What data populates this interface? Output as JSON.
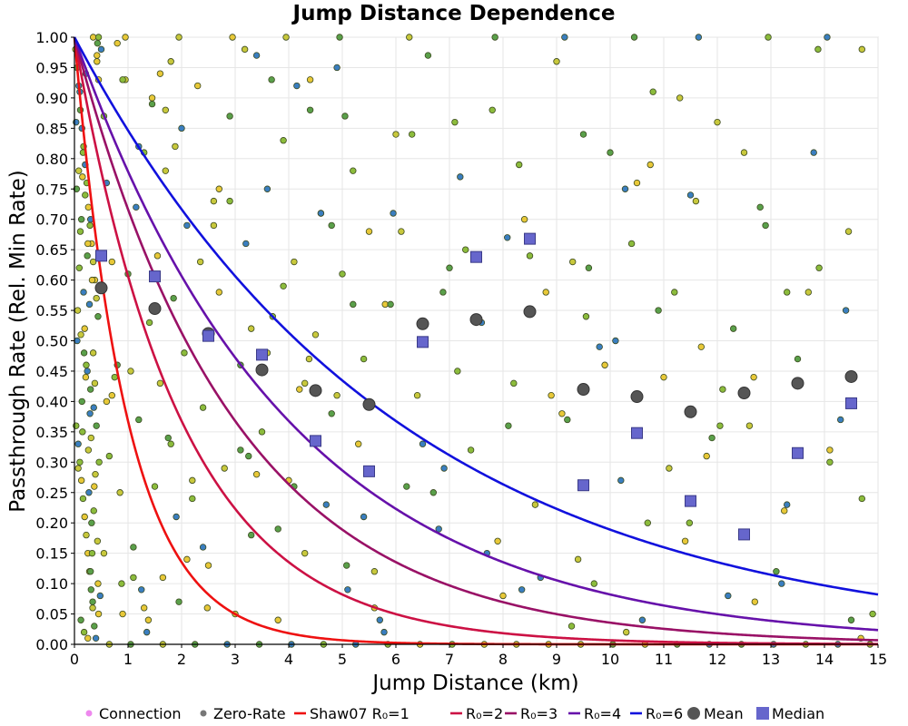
{
  "chart_data": {
    "type": "scatter",
    "title": "Jump Distance Dependence",
    "xlabel": "Jump Distance (km)",
    "ylabel": "Passthrough Rate (Rel. Min Rate)",
    "xlim": [
      0,
      15
    ],
    "ylim": [
      0,
      1
    ],
    "x_ticks": [
      "0",
      "1",
      "2",
      "3",
      "4",
      "5",
      "6",
      "7",
      "8",
      "9",
      "10",
      "11",
      "12",
      "13",
      "14",
      "15"
    ],
    "y_ticks": [
      "0.00",
      "0.05",
      "0.10",
      "0.15",
      "0.20",
      "0.25",
      "0.30",
      "0.35",
      "0.40",
      "0.45",
      "0.50",
      "0.55",
      "0.60",
      "0.65",
      "0.70",
      "0.75",
      "0.80",
      "0.85",
      "0.90",
      "0.95",
      "1.00"
    ],
    "grid": true,
    "legend_position": "bottom",
    "legend": [
      {
        "label": "Connection",
        "kind": "dot",
        "color": "#ee88ee"
      },
      {
        "label": "Zero-Rate",
        "kind": "dot",
        "color": "#777777"
      },
      {
        "label": "Shaw07 R₀=1",
        "kind": "line",
        "color": "#ee1111"
      },
      {
        "label": "R₀=2",
        "kind": "line",
        "color": "#cc1144"
      },
      {
        "label": "R₀=3",
        "kind": "line",
        "color": "#991166"
      },
      {
        "label": "R₀=4",
        "kind": "line",
        "color": "#6611aa"
      },
      {
        "label": "R₀=6",
        "kind": "line",
        "color": "#1111dd"
      },
      {
        "label": "Mean",
        "kind": "circle",
        "color": "#555555"
      },
      {
        "label": "Median",
        "kind": "square",
        "color": "#6666cc"
      }
    ],
    "curves": [
      {
        "name": "Shaw07 R₀=1",
        "model": "exp(-x/R0)",
        "R0": 1,
        "color": "#ee1111"
      },
      {
        "name": "R₀=2",
        "model": "exp(-x/R0)",
        "R0": 2,
        "color": "#cc1144"
      },
      {
        "name": "R₀=3",
        "model": "exp(-x/R0)",
        "R0": 3,
        "color": "#991166"
      },
      {
        "name": "R₀=4",
        "model": "exp(-x/R0)",
        "R0": 4,
        "color": "#6611aa"
      },
      {
        "name": "R₀=6",
        "model": "exp(-x/R0)",
        "R0": 6,
        "color": "#1111dd"
      }
    ],
    "mean": {
      "name": "Mean",
      "color": "#555555",
      "x": [
        0.5,
        1.5,
        2.5,
        3.5,
        4.5,
        5.5,
        6.5,
        7.5,
        8.5,
        9.5,
        10.5,
        11.5,
        12.5,
        13.5,
        14.5
      ],
      "y": [
        0.587,
        0.553,
        0.512,
        0.452,
        0.418,
        0.395,
        0.528,
        0.535,
        0.548,
        0.42,
        0.408,
        0.383,
        0.414,
        0.43,
        0.441
      ]
    },
    "median": {
      "name": "Median",
      "color": "#6666cc",
      "x": [
        0.5,
        1.5,
        2.5,
        3.5,
        4.5,
        5.5,
        6.5,
        7.5,
        8.5,
        9.5,
        10.5,
        11.5,
        12.5,
        13.5,
        14.5
      ],
      "y": [
        0.64,
        0.606,
        0.508,
        0.477,
        0.335,
        0.285,
        0.498,
        0.638,
        0.668,
        0.262,
        0.348,
        0.236,
        0.181,
        0.315,
        0.397
      ]
    },
    "points": {
      "colors": [
        "#c8c83c",
        "#8cbc3c",
        "#5aa04a",
        "#e8c838",
        "#3a7ec0"
      ],
      "x": [
        0.02,
        0.05,
        0.08,
        0.11,
        0.14,
        0.17,
        0.2,
        0.23,
        0.26,
        0.29,
        0.32,
        0.35,
        0.38,
        0.41,
        0.44,
        0.12,
        0.18,
        0.24,
        0.3,
        0.36,
        0.03,
        0.07,
        0.1,
        0.13,
        0.16,
        0.19,
        0.22,
        0.25,
        0.28,
        0.31,
        0.34,
        0.37,
        0.4,
        0.43,
        0.05,
        0.15,
        0.27,
        0.33,
        0.45,
        0.09,
        0.21,
        0.39,
        0.42,
        0.06,
        0.14,
        0.26,
        0.32,
        0.48,
        0.04,
        0.17,
        0.22,
        0.29,
        0.36,
        0.44,
        0.11,
        0.19,
        0.31,
        0.37,
        0.08,
        0.24,
        0.35,
        0.41,
        0.03,
        0.13,
        0.28,
        0.46,
        0.1,
        0.2,
        0.33,
        0.16,
        0.25,
        0.38,
        0.45,
        0.07,
        0.3,
        0.43,
        0.12,
        0.21,
        0.34,
        0.5,
        0.55,
        0.6,
        0.65,
        0.7,
        0.75,
        0.8,
        0.85,
        0.9,
        0.95,
        1.0,
        1.05,
        1.1,
        1.15,
        1.2,
        1.25,
        1.3,
        1.35,
        1.4,
        1.45,
        1.5,
        1.55,
        1.6,
        1.65,
        1.7,
        1.75,
        1.8,
        1.85,
        1.9,
        1.95,
        2.0,
        2.05,
        2.1,
        2.2,
        2.3,
        2.4,
        2.5,
        2.6,
        2.7,
        2.8,
        2.9,
        3.0,
        3.1,
        3.2,
        3.3,
        3.4,
        3.5,
        3.6,
        3.7,
        3.8,
        3.9,
        4.0,
        4.1,
        4.2,
        4.3,
        4.4,
        4.5,
        4.6,
        4.7,
        4.8,
        4.9,
        5.0,
        5.1,
        5.2,
        5.3,
        5.4,
        5.5,
        5.6,
        5.8,
        6.0,
        6.2,
        6.4,
        6.6,
        6.8,
        7.0,
        7.2,
        7.4,
        7.6,
        7.8,
        8.0,
        8.2,
        8.4,
        8.6,
        8.8,
        9.0,
        9.2,
        9.4,
        9.6,
        9.8,
        10.0,
        10.2,
        10.4,
        10.6,
        10.8,
        11.0,
        11.2,
        11.4,
        11.6,
        11.8,
        12.0,
        12.3,
        12.6,
        12.9,
        13.2,
        13.5,
        13.8,
        14.1,
        14.4,
        14.7,
        0.6,
        0.9,
        1.3,
        1.7,
        2.1,
        2.6,
        3.1,
        3.6,
        4.1,
        4.6,
        5.2,
        5.7,
        6.3,
        6.9,
        7.3,
        7.9,
        8.3,
        8.9,
        9.3,
        9.9,
        10.3,
        10.9,
        11.3,
        11.9,
        12.2,
        12.8,
        13.3,
        13.9,
        14.3,
        14.9,
        0.7,
        1.1,
        1.6,
        2.2,
        2.7,
        3.3,
        3.8,
        4.3,
        4.8,
        5.4,
        5.9,
        6.5,
        7.1,
        7.7,
        8.5,
        9.1,
        9.7,
        10.5,
        11.1,
        11.7,
        12.5,
        13.1,
        13.7,
        14.5,
        0.3,
        0.8,
        1.2,
        1.8,
        2.4,
        2.9,
        3.4,
        3.9,
        4.4,
        4.9,
        5.6,
        6.1,
        6.7,
        7.5,
        8.1,
        8.7,
        9.5,
        10.1,
        10.7,
        11.5,
        12.1,
        12.7,
        13.3,
        14.1,
        14.7,
        0.15,
        0.55,
        1.45,
        2.35,
        3.25,
        4.15,
        5.05,
        5.95,
        7.15,
        8.35,
        9.55,
        10.75,
        12.05,
        13.25,
        14.45,
        0.25,
        0.65,
        1.05,
        1.65,
        2.25,
        2.85,
        3.45,
        4.05,
        4.65,
        5.25,
        5.85,
        6.45,
        7.05,
        7.65,
        8.25,
        8.85,
        9.45,
        10.05,
        10.65,
        11.25,
        11.85,
        12.45,
        13.05,
        13.65,
        14.25,
        14.85,
        0.35,
        0.45,
        0.95,
        1.95,
        2.95,
        3.95,
        4.95,
        6.25,
        7.85,
        9.15,
        10.45,
        11.65,
        12.95,
        14.05,
        0.18,
        0.42,
        0.88,
        1.38,
        1.88,
        2.48,
        3.18,
        3.68,
        4.38,
        5.08,
        5.78,
        6.88,
        8.08,
        9.28,
        10.28,
        11.48,
        12.68,
        13.88,
        14.68
      ],
      "y": [
        0.98,
        0.95,
        0.92,
        0.88,
        0.85,
        0.82,
        0.79,
        0.76,
        0.72,
        0.69,
        0.66,
        0.63,
        0.6,
        0.57,
        0.54,
        0.51,
        0.48,
        0.45,
        0.42,
        0.39,
        0.36,
        0.33,
        0.3,
        0.27,
        0.24,
        0.21,
        0.18,
        0.15,
        0.12,
        0.09,
        0.06,
        0.03,
        0.01,
        0.99,
        0.5,
        0.35,
        0.25,
        0.15,
        0.05,
        0.62,
        0.44,
        0.28,
        0.97,
        0.55,
        0.4,
        0.32,
        0.2,
        0.08,
        0.75,
        0.58,
        0.46,
        0.38,
        0.22,
        0.1,
        0.68,
        0.52,
        0.34,
        0.26,
        0.78,
        0.64,
        0.48,
        0.36,
        0.86,
        0.7,
        0.56,
        0.3,
        0.91,
        0.74,
        0.6,
        0.81,
        0.66,
        0.43,
        0.93,
        0.29,
        0.12,
        0.17,
        0.04,
        0.94,
        0.07,
        0.98,
        0.87,
        0.76,
        0.31,
        0.63,
        0.44,
        0.99,
        0.25,
        0.05,
        0.93,
        0.61,
        0.45,
        0.16,
        0.72,
        0.37,
        0.09,
        0.81,
        0.02,
        0.53,
        0.9,
        0.26,
        0.64,
        0.43,
        0.11,
        0.78,
        0.34,
        0.96,
        0.57,
        0.21,
        0.07,
        0.85,
        0.48,
        0.69,
        0.24,
        0.92,
        0.39,
        0.13,
        0.73,
        0.58,
        0.29,
        0.87,
        0.05,
        0.46,
        0.66,
        0.18,
        0.97,
        0.35,
        0.75,
        0.54,
        0.04,
        0.83,
        0.27,
        0.63,
        0.42,
        0.15,
        0.88,
        0.51,
        0.71,
        0.23,
        0.38,
        0.95,
        0.61,
        0.09,
        0.78,
        0.33,
        0.47,
        0.68,
        0.12,
        0.56,
        0.84,
        0.26,
        0.41,
        0.97,
        0.19,
        0.62,
        0.77,
        0.32,
        0.53,
        0.88,
        0.08,
        0.43,
        0.7,
        0.23,
        0.58,
        0.96,
        0.37,
        0.14,
        0.62,
        0.49,
        0.81,
        0.27,
        0.66,
        0.04,
        0.91,
        0.44,
        0.58,
        0.17,
        0.73,
        0.31,
        0.86,
        0.52,
        0.36,
        0.69,
        0.1,
        0.47,
        0.81,
        0.3,
        0.55,
        0.24,
        0.4,
        0.93,
        0.06,
        0.88,
        0.14,
        0.69,
        0.32,
        0.48,
        0.26,
        0.71,
        0.56,
        0.04,
        0.84,
        0.29,
        0.65,
        0.17,
        0.79,
        0.41,
        0.63,
        0.46,
        0.02,
        0.55,
        0.9,
        0.34,
        0.08,
        0.72,
        0.23,
        0.62,
        0.37,
        0.05,
        0.41,
        0.11,
        0.94,
        0.27,
        0.75,
        0.52,
        0.19,
        0.43,
        0.69,
        0.21,
        0.56,
        0.33,
        0.86,
        0.15,
        0.64,
        0.38,
        0.1,
        0.76,
        0.29,
        0.49,
        0.81,
        0.12,
        0.58,
        0.04,
        0.7,
        0.46,
        0.82,
        0.33,
        0.16,
        0.73,
        0.28,
        0.59,
        0.93,
        0.41,
        0.06,
        0.68,
        0.25,
        0.53,
        0.36,
        0.11,
        0.84,
        0.5,
        0.2,
        0.74,
        0.42,
        0.07,
        0.58,
        0.32,
        0.98,
        0.77,
        0.15,
        0.89,
        0.63,
        0.31,
        0.92,
        0.87,
        0.71,
        0.45,
        0.09,
        0.54,
        0.79,
        0.36,
        0.22,
        0.68,
        0.01,
        0.0,
        0.0,
        0.0,
        0.0,
        0.0,
        0.0,
        0.0,
        0.0,
        0.0,
        0.0,
        0.0,
        0.0,
        0.0,
        0.0,
        0.0,
        0.0,
        0.0,
        0.0,
        0.0,
        0.0,
        0.0,
        0.0,
        0.0,
        0.0,
        0.0,
        1.0,
        1.0,
        1.0,
        1.0,
        1.0,
        1.0,
        1.0,
        1.0,
        1.0,
        1.0,
        1.0,
        1.0,
        1.0,
        1.0,
        0.02,
        0.96,
        0.1,
        0.04,
        0.82,
        0.06,
        0.98,
        0.93,
        0.47,
        0.13,
        0.02,
        0.58,
        0.67,
        0.03,
        0.75,
        0.2,
        0.44,
        0.98,
        0.01
      ]
    }
  }
}
